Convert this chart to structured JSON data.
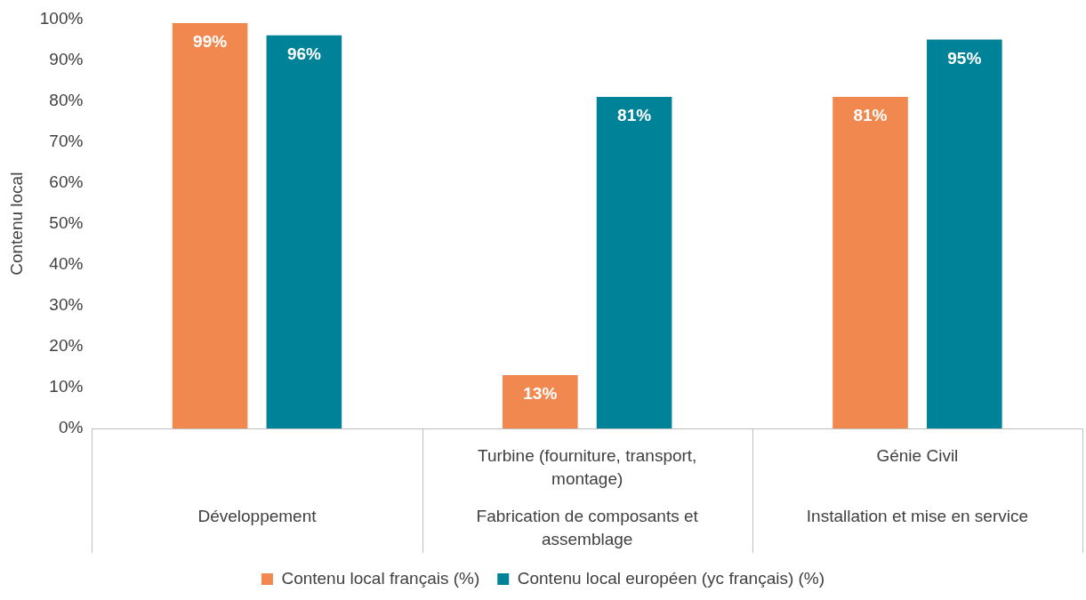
{
  "chart_data": {
    "type": "bar",
    "ylabel": "Contenu local",
    "categories": [
      null,
      "Turbine (fourniture, transport, montage)",
      "Génie Civil"
    ],
    "annotations": [
      "Développement",
      "Fabrication de composants et assemblage",
      "Installation et mise en service"
    ],
    "series": [
      {
        "name": "Contenu local français (%)",
        "color": "#f0884f",
        "values": [
          99,
          13,
          81
        ],
        "value_labels": [
          "99%",
          "13%",
          "81%"
        ]
      },
      {
        "name": "Contenu local européen (yc français) (%)",
        "color": "#008299",
        "values": [
          96,
          81,
          95
        ],
        "value_labels": [
          "96%",
          "81%",
          "95%"
        ]
      }
    ],
    "ylim": [
      0,
      100
    ],
    "yticks": [
      {
        "value": 0,
        "label": "0%"
      },
      {
        "value": 10,
        "label": "10%"
      },
      {
        "value": 20,
        "label": "20%"
      },
      {
        "value": 30,
        "label": "30%"
      },
      {
        "value": 40,
        "label": "40%"
      },
      {
        "value": 50,
        "label": "50%"
      },
      {
        "value": 60,
        "label": "60%"
      },
      {
        "value": 70,
        "label": "70%"
      },
      {
        "value": 80,
        "label": "80%"
      },
      {
        "value": 90,
        "label": "90%"
      },
      {
        "value": 100,
        "label": "100%"
      }
    ],
    "grid": false,
    "legend": "bottom"
  }
}
